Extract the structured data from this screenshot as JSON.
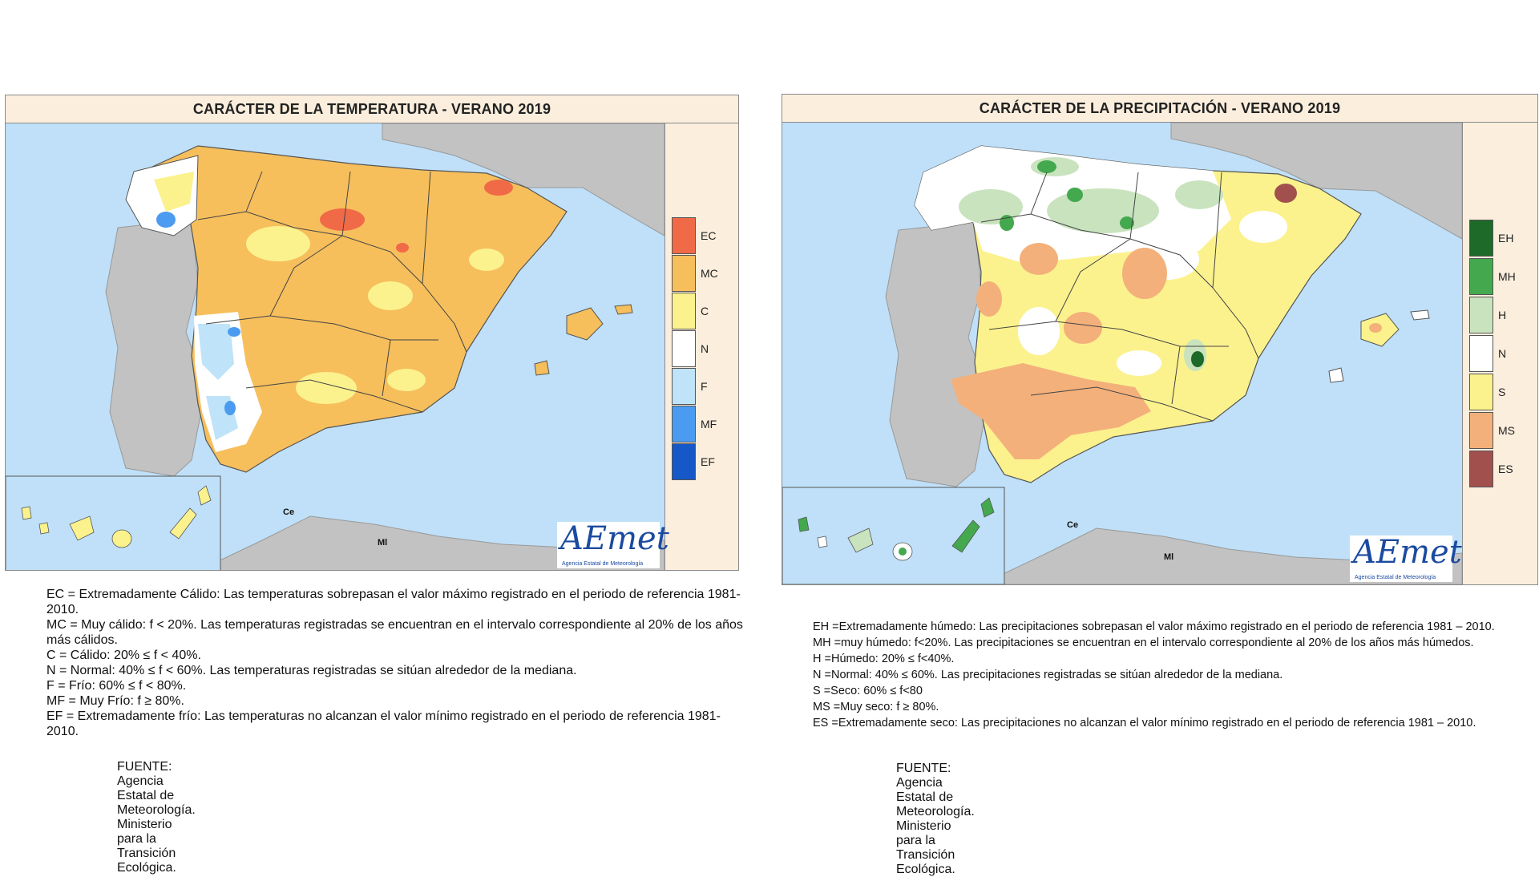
{
  "temperature_panel": {
    "title": "CARÁCTER DE LA TEMPERATURA - VERANO 2019",
    "legend": [
      {
        "code": "EC",
        "color": "#f06a48"
      },
      {
        "code": "MC",
        "color": "#f6bf5c"
      },
      {
        "code": "C",
        "color": "#fbf28e"
      },
      {
        "code": "N",
        "color": "#ffffff"
      },
      {
        "code": "F",
        "color": "#bfe3f8"
      },
      {
        "code": "MF",
        "color": "#4b9cf0"
      },
      {
        "code": "EF",
        "color": "#1658c8"
      }
    ],
    "logo": {
      "name": "AEmet",
      "subtitle": "Agencia Estatal de Meteorología"
    },
    "labels": {
      "ce": "Ce",
      "ml": "Ml"
    },
    "definitions": [
      "EC = Extremadamente Cálido: Las temperaturas sobrepasan el valor máximo registrado en el periodo de referencia 1981-2010.",
      "MC = Muy cálido: f < 20%. Las temperaturas registradas se encuentran en el intervalo correspondiente al 20% de los años más cálidos.",
      "C = Cálido: 20% ≤ f < 40%.",
      "N = Normal: 40% ≤ f < 60%. Las temperaturas registradas se sitúan alrededor de la mediana.",
      "F = Frío: 60% ≤ f < 80%.",
      "MF = Muy Frío: f ≥ 80%.",
      "EF = Extremadamente frío: Las temperaturas no alcanzan el valor mínimo registrado en el periodo de referencia 1981-2010."
    ],
    "source": "FUENTE: Agencia Estatal de Meteorología. Ministerio para la Transición Ecológica."
  },
  "precipitation_panel": {
    "title": "CARÁCTER DE LA PRECIPITACIÓN - VERANO 2019",
    "legend": [
      {
        "code": "EH",
        "color": "#1e6a28"
      },
      {
        "code": "MH",
        "color": "#44a84e"
      },
      {
        "code": "H",
        "color": "#c9e3bf"
      },
      {
        "code": "N",
        "color": "#ffffff"
      },
      {
        "code": "S",
        "color": "#fbf28e"
      },
      {
        "code": "MS",
        "color": "#f4b07a"
      },
      {
        "code": "ES",
        "color": "#a2504d"
      }
    ],
    "logo": {
      "name": "AEmet",
      "subtitle": "Agencia Estatal de Meteorología"
    },
    "labels": {
      "ce": "Ce",
      "ml": "Ml"
    },
    "definitions": [
      "EH =Extremadamente húmedo: Las precipitaciones sobrepasan el valor máximo registrado en el periodo de referencia 1981 – 2010.",
      "MH =muy húmedo: f<20%. Las precipitaciones se encuentran en el intervalo correspondiente al 20% de los años más húmedos.",
      "H =Húmedo: 20% ≤ f<40%.",
      "N =Normal: 40% ≤ 60%. Las precipitaciones registradas se sitúan alrededor de la mediana.",
      "S =Seco: 60% ≤ f<80",
      "MS =Muy seco: f ≥ 80%.",
      "ES =Extremadamente seco: Las precipitaciones no alcanzan el valor mínimo registrado en el periodo de referencia 1981 – 2010."
    ],
    "source": "FUENTE: Agencia Estatal de Meteorología. Ministerio para la Transición Ecológica."
  }
}
